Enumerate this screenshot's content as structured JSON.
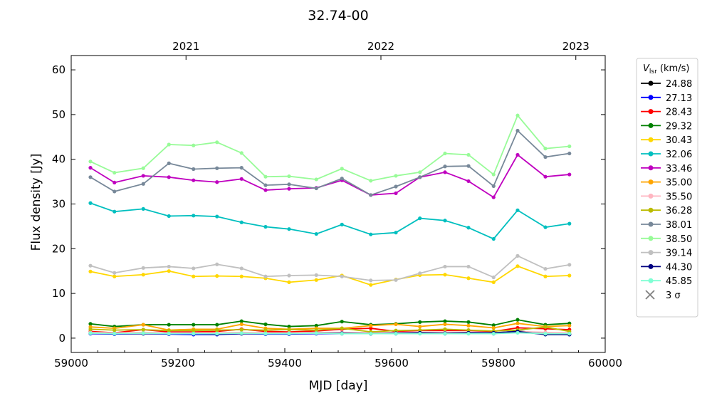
{
  "chart_data": {
    "type": "line",
    "title": "32.74-00",
    "xlabel": "MJD [day]",
    "ylabel": "Flux density [Jy]",
    "xlim": [
      59000,
      60000
    ],
    "ylim": [
      -3.2,
      63.2
    ],
    "xticks": [
      59000,
      59200,
      59400,
      59600,
      59800,
      60000
    ],
    "yticks": [
      0,
      10,
      20,
      30,
      40,
      50,
      60
    ],
    "top_axis": {
      "ticks": [
        {
          "label": "2021",
          "mjd": 59215
        },
        {
          "label": "2022",
          "mjd": 59580
        },
        {
          "label": "2023",
          "mjd": 59945
        }
      ]
    },
    "legend": {
      "title_main": "V",
      "title_sub": "lsr",
      "title_unit": " (km/s)",
      "placement": "outside-right",
      "sigma_label": "3 σ",
      "sigma_color": "#808080"
    },
    "x": [
      59036,
      59081,
      59135,
      59183,
      59229,
      59273,
      59319,
      59364,
      59408,
      59459,
      59507,
      59561,
      59608,
      59653,
      59700,
      59744,
      59791,
      59836,
      59888,
      59933
    ],
    "series": [
      {
        "name": "24.88",
        "color": "#000000",
        "values": [
          1.1,
          1.0,
          1.1,
          1.0,
          0.9,
          0.9,
          1.1,
          1.0,
          1.0,
          1.1,
          1.1,
          1.0,
          1.1,
          1.2,
          1.1,
          1.1,
          1.1,
          1.6,
          1.0,
          0.9
        ]
      },
      {
        "name": "27.13",
        "color": "#0000ff",
        "values": [
          1.0,
          0.9,
          1.0,
          0.9,
          0.8,
          0.8,
          1.0,
          0.9,
          0.9,
          1.0,
          1.0,
          1.0,
          1.0,
          1.1,
          1.0,
          1.1,
          1.0,
          1.5,
          0.9,
          0.8
        ]
      },
      {
        "name": "28.43",
        "color": "#ff0000",
        "values": [
          1.5,
          1.2,
          1.9,
          1.4,
          1.4,
          1.5,
          2.0,
          1.5,
          1.4,
          1.6,
          2.0,
          2.2,
          1.5,
          1.7,
          1.7,
          1.7,
          1.5,
          2.3,
          2.1,
          1.9
        ]
      },
      {
        "name": "29.32",
        "color": "#008000",
        "values": [
          3.2,
          2.6,
          3.0,
          3.0,
          3.0,
          3.0,
          3.8,
          3.1,
          2.6,
          2.8,
          3.7,
          3.0,
          3.2,
          3.6,
          3.8,
          3.6,
          2.9,
          4.1,
          3.0,
          3.3
        ]
      },
      {
        "name": "30.43",
        "color": "#ffd700",
        "values": [
          14.9,
          13.8,
          14.2,
          15.0,
          13.8,
          13.9,
          13.8,
          13.4,
          12.5,
          13.0,
          14.0,
          11.9,
          13.1,
          14.1,
          14.2,
          13.4,
          12.5,
          16.1,
          13.8,
          14.0
        ]
      },
      {
        "name": "32.06",
        "color": "#00bfbf",
        "values": [
          30.2,
          28.3,
          28.9,
          27.3,
          27.4,
          27.2,
          25.9,
          24.9,
          24.4,
          23.3,
          25.4,
          23.2,
          23.6,
          26.8,
          26.3,
          24.7,
          22.2,
          28.6,
          24.8,
          25.6
        ]
      },
      {
        "name": "33.46",
        "color": "#bf00bf",
        "values": [
          38.1,
          34.8,
          36.3,
          36.0,
          35.3,
          34.9,
          35.6,
          33.1,
          33.4,
          33.6,
          35.3,
          32.0,
          32.4,
          36.0,
          37.1,
          35.1,
          31.5,
          41.0,
          36.1,
          36.6
        ]
      },
      {
        "name": "35.00",
        "color": "#ffa500",
        "values": [
          2.5,
          2.2,
          3.0,
          1.8,
          2.0,
          2.0,
          3.1,
          2.2,
          2.0,
          2.2,
          2.2,
          2.8,
          3.1,
          2.6,
          3.1,
          2.8,
          2.3,
          3.3,
          2.6,
          2.8
        ]
      },
      {
        "name": "35.50",
        "color": "#ffb6c1",
        "values": [
          1.3,
          1.2,
          1.3,
          1.2,
          1.2,
          1.2,
          1.3,
          1.2,
          1.2,
          1.3,
          1.3,
          1.2,
          1.3,
          1.3,
          1.3,
          1.3,
          1.2,
          1.5,
          1.3,
          1.2
        ]
      },
      {
        "name": "36.28",
        "color": "#bbbb00",
        "values": [
          2.0,
          1.8,
          1.9,
          1.7,
          1.7,
          1.8,
          1.9,
          1.8,
          1.9,
          1.8,
          2.2,
          1.4,
          1.7,
          1.8,
          2.0,
          1.8,
          1.6,
          1.8,
          2.5,
          1.5
        ]
      },
      {
        "name": "38.01",
        "color": "#778899",
        "values": [
          36.0,
          32.8,
          34.5,
          39.1,
          37.8,
          38.0,
          38.1,
          34.2,
          34.4,
          33.5,
          35.7,
          32.0,
          33.9,
          36.0,
          38.4,
          38.5,
          34.0,
          46.4,
          40.5,
          41.3
        ]
      },
      {
        "name": "38.50",
        "color": "#98fb98",
        "values": [
          39.5,
          37.0,
          38.0,
          43.3,
          43.1,
          43.8,
          41.4,
          36.1,
          36.2,
          35.5,
          37.9,
          35.2,
          36.3,
          37.1,
          41.3,
          41.0,
          36.6,
          49.8,
          42.4,
          42.9
        ]
      },
      {
        "name": "39.14",
        "color": "#c0c0c0",
        "values": [
          16.2,
          14.6,
          15.7,
          16.0,
          15.6,
          16.5,
          15.6,
          13.8,
          14.0,
          14.1,
          13.8,
          12.9,
          13.0,
          14.5,
          16.0,
          16.0,
          13.6,
          18.4,
          15.5,
          16.4
        ]
      },
      {
        "name": "44.30",
        "color": "#000080",
        "values": [
          1.1,
          1.0,
          1.0,
          1.0,
          1.0,
          0.9,
          1.0,
          1.0,
          1.0,
          1.1,
          1.1,
          1.0,
          1.1,
          1.2,
          1.1,
          1.2,
          1.2,
          1.5,
          0.8,
          0.8
        ]
      },
      {
        "name": "45.85",
        "color": "#7fffd4",
        "values": [
          1.1,
          1.0,
          1.1,
          1.0,
          1.0,
          1.0,
          1.1,
          1.0,
          1.0,
          1.1,
          1.0,
          1.0,
          1.0,
          1.0,
          1.0,
          1.0,
          1.0,
          1.2,
          1.0,
          1.0
        ]
      }
    ]
  }
}
